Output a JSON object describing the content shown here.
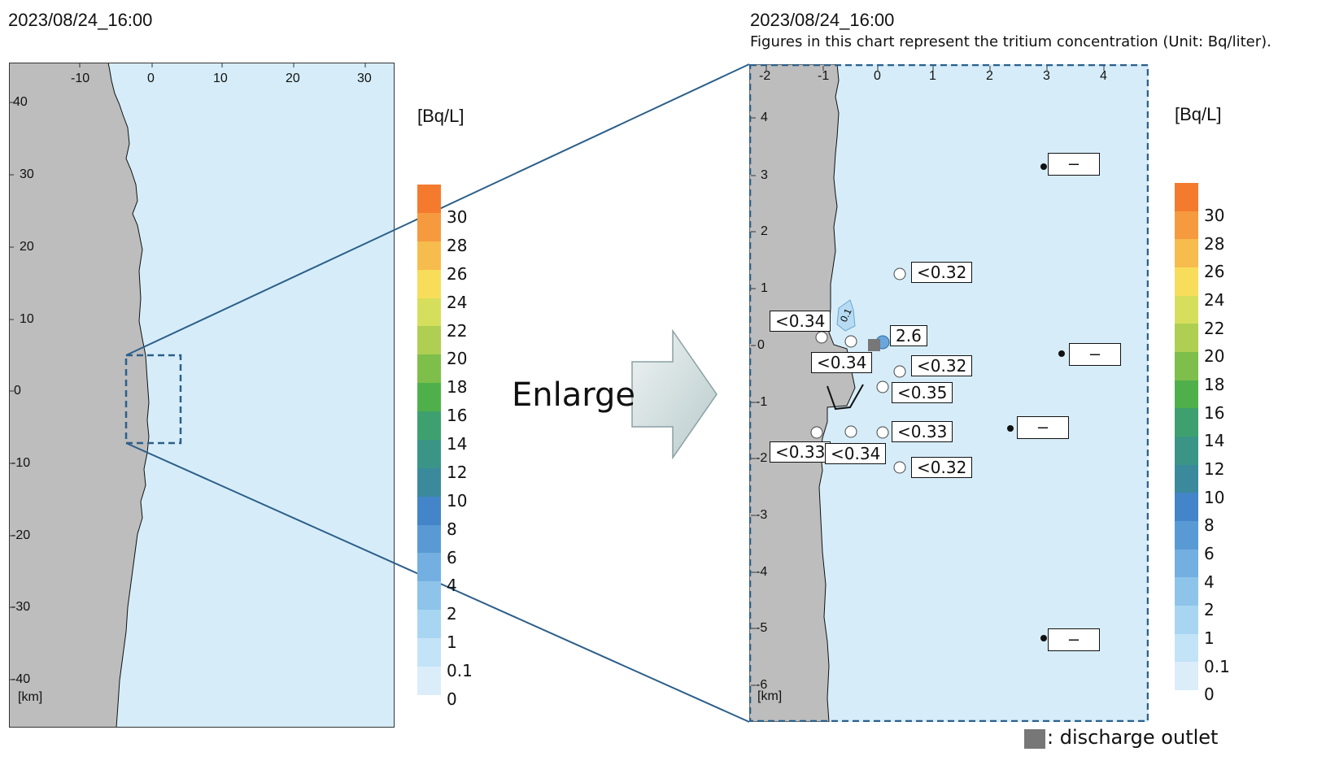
{
  "left_panel": {
    "timestamp": "2023/08/24_16:00",
    "x_ticks": [
      "-10",
      "0",
      "10",
      "20",
      "30"
    ],
    "y_ticks": [
      "40",
      "30",
      "20",
      "10",
      "0",
      "-10",
      "-20",
      "-30",
      "-40"
    ],
    "unit_km": "[km]"
  },
  "right_panel": {
    "timestamp": "2023/08/24_16:00",
    "note": "Figures in this chart represent the tritium concentration (Unit: Bq/liter).",
    "x_ticks": [
      "-2",
      "-1",
      "0",
      "1",
      "2",
      "3",
      "4"
    ],
    "y_ticks": [
      "4",
      "3",
      "2",
      "1",
      "0",
      "-1",
      "-2",
      "-3",
      "-4",
      "-5",
      "-6"
    ],
    "unit_km": "[km]",
    "contour_label": "0.1",
    "sample_labels": [
      "<0.32",
      "<0.34",
      "2.6",
      "<0.34",
      "<0.32",
      "<0.35",
      "<0.33",
      "<0.33",
      "<0.34",
      "<0.32"
    ],
    "offshore_labels": [
      "–",
      "–",
      "–",
      "–"
    ]
  },
  "legend": {
    "unit": "[Bq/L]",
    "levels": [
      "30",
      "28",
      "26",
      "24",
      "22",
      "20",
      "18",
      "16",
      "14",
      "12",
      "10",
      "8",
      "6",
      "4",
      "2",
      "1",
      "0.1",
      "0"
    ],
    "colors": [
      "#f47b2e",
      "#f69a3f",
      "#f7bc4e",
      "#f8dd5b",
      "#d6df5c",
      "#aecf52",
      "#7dbf4a",
      "#4fb04b",
      "#3ea06e",
      "#3a9587",
      "#3a8a9c",
      "#4385c8",
      "#5a9ad4",
      "#73afe0",
      "#8ec4ea",
      "#a8d6f2",
      "#c3e3f7",
      "#dcedfa"
    ]
  },
  "arrow_label": "Enlarge",
  "discharge_label": ": discharge outlet",
  "colors": {
    "sea": "#d6edf9",
    "land": "#bdbdbd",
    "frame_dash": "#2c5f8a",
    "zoom_line": "#2c5f8a",
    "outlet": "#777777"
  }
}
